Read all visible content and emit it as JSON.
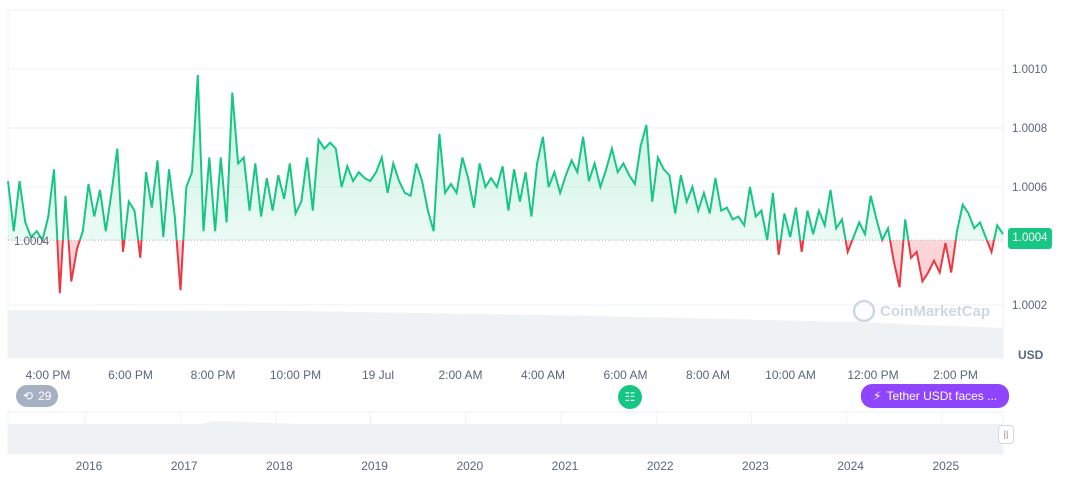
{
  "chart_data": {
    "type": "line",
    "title": "",
    "currency_label": "USD",
    "watermark": "CoinMarketCap",
    "baseline_label": "1.0004",
    "current_price_label": "1.0004",
    "y_ticks": [
      "1.0010",
      "1.0008",
      "1.0006",
      "1.0002"
    ],
    "y_tick_values": [
      1.001,
      1.0008,
      1.0006,
      1.0002
    ],
    "ylim": [
      1.000125,
      1.00117
    ],
    "baseline_value": 1.00042,
    "x_ticks": [
      "4:00 PM",
      "6:00 PM",
      "8:00 PM",
      "10:00 PM",
      "19 Jul",
      "2:00 AM",
      "4:00 AM",
      "6:00 AM",
      "8:00 AM",
      "10:00 AM",
      "12:00 PM",
      "2:00 PM"
    ],
    "navigator_ticks": [
      "2016",
      "2017",
      "2018",
      "2019",
      "2020",
      "2021",
      "2022",
      "2023",
      "2024",
      "2025"
    ],
    "colors": {
      "up": "#16c784",
      "down": "#ea3943",
      "news": "#8f44fd"
    },
    "values": [
      1.00062,
      1.00045,
      1.00062,
      1.00048,
      1.00043,
      1.00045,
      1.00042,
      1.0005,
      1.00066,
      1.00024,
      1.00057,
      1.00028,
      1.00039,
      1.00045,
      1.00061,
      1.0005,
      1.00059,
      1.00045,
      1.00058,
      1.00073,
      1.00038,
      1.00055,
      1.00052,
      1.00036,
      1.00065,
      1.00053,
      1.00069,
      1.00043,
      1.00066,
      1.0005,
      1.00025,
      1.0006,
      1.00065,
      1.00098,
      1.00045,
      1.0007,
      1.00045,
      1.0007,
      1.00048,
      1.00092,
      1.00068,
      1.0007,
      1.00052,
      1.00068,
      1.0005,
      1.00063,
      1.00052,
      1.00064,
      1.00056,
      1.00068,
      1.00051,
      1.00055,
      1.0007,
      1.00052,
      1.00076,
      1.00073,
      1.00075,
      1.00073,
      1.0006,
      1.00067,
      1.00062,
      1.00065,
      1.00063,
      1.00062,
      1.00065,
      1.0007,
      1.00058,
      1.00068,
      1.00062,
      1.00058,
      1.00057,
      1.00068,
      1.00062,
      1.00052,
      1.00045,
      1.00078,
      1.00058,
      1.00061,
      1.00058,
      1.0007,
      1.00063,
      1.00053,
      1.00068,
      1.0006,
      1.00063,
      1.0006,
      1.00067,
      1.00052,
      1.00066,
      1.00055,
      1.00065,
      1.0005,
      1.00068,
      1.00077,
      1.0006,
      1.00065,
      1.00058,
      1.00064,
      1.00069,
      1.00065,
      1.00077,
      1.00062,
      1.00068,
      1.0006,
      1.00066,
      1.00073,
      1.00065,
      1.00068,
      1.00064,
      1.00061,
      1.00074,
      1.00081,
      1.00055,
      1.0007,
      1.00066,
      1.00064,
      1.00051,
      1.00064,
      1.00055,
      1.0006,
      1.00052,
      1.00058,
      1.00051,
      1.00063,
      1.00052,
      1.00053,
      1.00049,
      1.0005,
      1.00047,
      1.0006,
      1.0005,
      1.00052,
      1.00042,
      1.00058,
      1.00037,
      1.00051,
      1.00043,
      1.00053,
      1.00038,
      1.00052,
      1.00044,
      1.00052,
      1.00047,
      1.00059,
      1.00046,
      1.00049,
      1.00038,
      1.00043,
      1.00048,
      1.00044,
      1.00057,
      1.00049,
      1.00042,
      1.00046,
      1.00035,
      1.00026,
      1.00049,
      1.00036,
      1.00038,
      1.00028,
      1.00031,
      1.00035,
      1.00031,
      1.00041,
      1.00031,
      1.00045,
      1.00054,
      1.00051,
      1.00046,
      1.00048,
      1.00043,
      1.00038,
      1.00047,
      1.00044
    ],
    "grid": true
  },
  "markers": {
    "history_count": "29",
    "history_icon": "history-icon",
    "news_icon": "document-icon",
    "event_icon": "lightning-icon",
    "event_label": "Tether USDt faces ..."
  }
}
